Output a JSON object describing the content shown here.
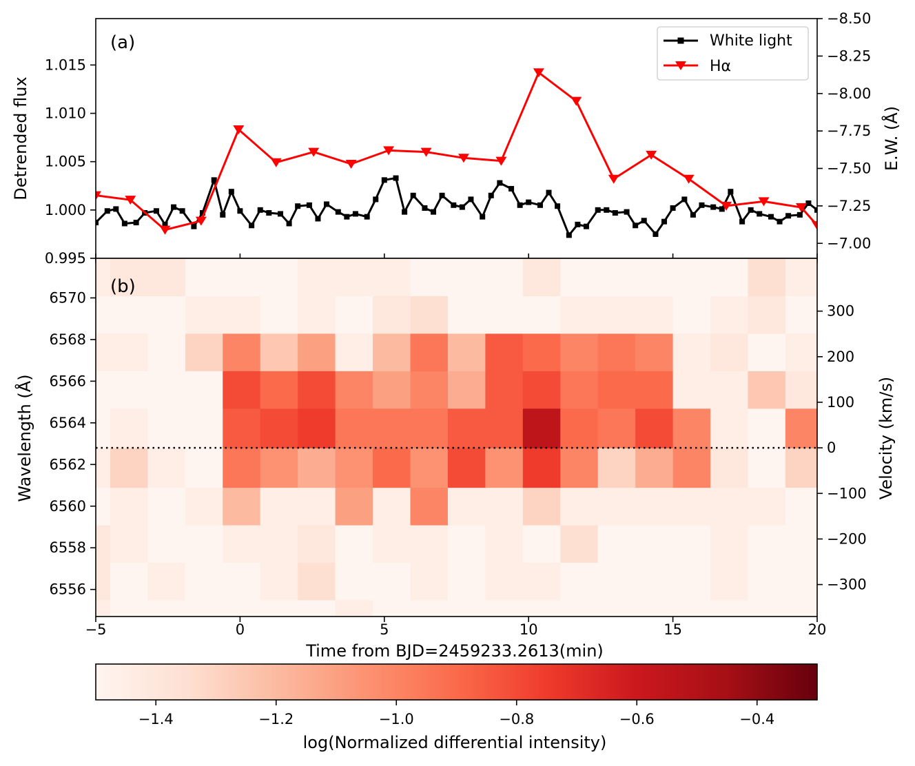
{
  "chart_data": [
    {
      "panel_label": "(a)",
      "type": "line",
      "xlim": [
        -5,
        20
      ],
      "ylim_left": [
        0.995,
        1.0198
      ],
      "ylim_right": [
        -6.9,
        -8.5
      ],
      "ylabel_left": "Detrended flux",
      "ylabel_right": "E.W. (Å)",
      "left_ticks": [
        {
          "v": 0.995,
          "label": "0.995"
        },
        {
          "v": 1.0,
          "label": "1.000"
        },
        {
          "v": 1.005,
          "label": "1.005"
        },
        {
          "v": 1.01,
          "label": "1.010"
        },
        {
          "v": 1.015,
          "label": "1.015"
        }
      ],
      "right_ticks": [
        {
          "v": -7.0,
          "label": "−7.00"
        },
        {
          "v": -7.25,
          "label": "−7.25"
        },
        {
          "v": -7.5,
          "label": "−7.50"
        },
        {
          "v": -7.75,
          "label": "−7.75"
        },
        {
          "v": -8.0,
          "label": "−8.00"
        },
        {
          "v": -8.25,
          "label": "−8.25"
        },
        {
          "v": -8.5,
          "label": "−8.50"
        }
      ],
      "legend": {
        "position": "top-right",
        "white_label": "White light",
        "ha_label": "Hα"
      },
      "series": [
        {
          "name": "White light",
          "axis": "left",
          "color": "#000000",
          "marker": "square",
          "x": [
            -5.0,
            -4.6,
            -4.3,
            -4.0,
            -3.6,
            -3.3,
            -2.9,
            -2.6,
            -2.3,
            -2.0,
            -1.6,
            -1.3,
            -0.9,
            -0.6,
            -0.3,
            0.0,
            0.4,
            0.7,
            1.0,
            1.4,
            1.7,
            2.0,
            2.4,
            2.7,
            3.0,
            3.4,
            3.7,
            4.0,
            4.4,
            4.7,
            5.0,
            5.4,
            5.7,
            6.0,
            6.4,
            6.7,
            7.0,
            7.4,
            7.7,
            8.0,
            8.4,
            8.7,
            9.0,
            9.4,
            9.7,
            10.0,
            10.4,
            10.7,
            11.0,
            11.4,
            11.7,
            12.0,
            12.4,
            12.7,
            13.0,
            13.4,
            13.7,
            14.0,
            14.4,
            14.7,
            15.0,
            15.4,
            15.7,
            16.0,
            16.4,
            16.7,
            17.0,
            17.4,
            17.7,
            18.0,
            18.4,
            18.7,
            19.0,
            19.4,
            19.7,
            20.0
          ],
          "y": [
            0.9987,
            0.9999,
            1.0001,
            0.9986,
            0.9987,
            0.9997,
            0.9999,
            0.9985,
            1.0003,
            0.9999,
            0.9983,
            0.9997,
            1.0031,
            0.9995,
            1.0019,
            0.9999,
            0.9984,
            1.0,
            0.9997,
            0.9996,
            0.9986,
            1.0004,
            1.0005,
            0.9991,
            1.0006,
            0.9998,
            0.9993,
            0.9996,
            0.9993,
            1.0011,
            1.0031,
            1.0033,
            0.9998,
            1.0015,
            1.0002,
            0.9998,
            1.0015,
            1.0005,
            1.0003,
            1.0011,
            0.9993,
            1.0015,
            1.0028,
            1.0022,
            1.0005,
            1.0008,
            1.0005,
            1.0018,
            1.0004,
            0.9974,
            0.9985,
            0.9983,
            1.0,
            1.0,
            0.9997,
            0.9998,
            0.9984,
            0.9989,
            0.9975,
            0.9988,
            1.0002,
            1.0011,
            0.9995,
            1.0005,
            1.0003,
            1.0001,
            1.0019,
            0.9988,
            1.0,
            0.9996,
            0.9993,
            0.9988,
            0.9994,
            0.9995,
            1.0007,
            1.0
          ]
        },
        {
          "name": "Hα",
          "axis": "right",
          "color": "#ff0000",
          "marker": "triangle-down",
          "x": [
            -5.0,
            -3.8,
            -2.6,
            -1.35,
            -0.05,
            1.25,
            2.55,
            3.85,
            5.15,
            6.45,
            7.75,
            9.05,
            10.35,
            11.65,
            12.95,
            14.25,
            15.55,
            16.85,
            18.15,
            19.45,
            20.0
          ],
          "y": [
            -7.32,
            -7.29,
            -7.09,
            -7.15,
            -7.76,
            -7.54,
            -7.61,
            -7.53,
            -7.62,
            -7.61,
            -7.57,
            -7.55,
            -8.14,
            -7.95,
            -7.43,
            -7.59,
            -7.43,
            -7.25,
            -7.28,
            -7.24,
            -7.12
          ]
        }
      ]
    },
    {
      "panel_label": "(b)",
      "type": "heatmap",
      "xlim": [
        -5,
        20
      ],
      "ylim": [
        6554.7,
        6571.9
      ],
      "xlabel": "Time from BJD=2459233.2613(min)",
      "ylabel_left": "Wavelength (Å)",
      "ylabel_right": "Velocity (km/s)",
      "x_ticks": [
        {
          "v": -5,
          "label": "−5"
        },
        {
          "v": 0,
          "label": "0"
        },
        {
          "v": 5,
          "label": "5"
        },
        {
          "v": 10,
          "label": "10"
        },
        {
          "v": 15,
          "label": "15"
        },
        {
          "v": 20,
          "label": "20"
        }
      ],
      "y_ticks": [
        {
          "v": 6556,
          "label": "6556"
        },
        {
          "v": 6558,
          "label": "6558"
        },
        {
          "v": 6560,
          "label": "6560"
        },
        {
          "v": 6562,
          "label": "6562"
        },
        {
          "v": 6564,
          "label": "6564"
        },
        {
          "v": 6566,
          "label": "6566"
        },
        {
          "v": 6568,
          "label": "6568"
        },
        {
          "v": 6570,
          "label": "6570"
        }
      ],
      "velocity_ticks": [
        {
          "v": -300,
          "label": "−300"
        },
        {
          "v": -200,
          "label": "−200"
        },
        {
          "v": -100,
          "label": "−100"
        },
        {
          "v": 0,
          "label": "0"
        },
        {
          "v": 100,
          "label": "100"
        },
        {
          "v": 200,
          "label": "200"
        },
        {
          "v": 300,
          "label": "300"
        }
      ],
      "rest_wavelength": 6562.8,
      "velocity_per_angstrom": 45.7,
      "reference_line": {
        "wavelength": 6562.8,
        "style": "dotted"
      },
      "column_edges": [
        -5,
        -4.5,
        -3.2,
        -1.9,
        -0.6,
        0.7,
        2.0,
        3.3,
        4.6,
        5.9,
        7.2,
        8.5,
        9.8,
        11.1,
        12.4,
        13.7,
        15.0,
        16.3,
        17.6,
        18.9,
        20
      ],
      "row_edges": [
        6554.7,
        6555.5,
        6557.3,
        6559.1,
        6560.9,
        6562.8,
        6564.7,
        6566.5,
        6568.3,
        6570.1,
        6571.9
      ],
      "values": [
        [
          -1.45,
          -1.5,
          -1.5,
          -1.5,
          -1.5,
          -1.5,
          -1.5,
          -1.45,
          -1.5,
          -1.5,
          -1.5,
          -1.5,
          -1.5,
          -1.5,
          -1.5,
          -1.5,
          -1.5,
          -1.5,
          -1.5,
          -1.5
        ],
        [
          -1.4,
          -1.5,
          -1.45,
          -1.5,
          -1.5,
          -1.45,
          -1.35,
          -1.5,
          -1.5,
          -1.45,
          -1.5,
          -1.45,
          -1.45,
          -1.5,
          -1.5,
          -1.5,
          -1.5,
          -1.45,
          -1.5,
          -1.5
        ],
        [
          -1.4,
          -1.45,
          -1.5,
          -1.5,
          -1.45,
          -1.45,
          -1.4,
          -1.5,
          -1.45,
          -1.45,
          -1.5,
          -1.45,
          -1.5,
          -1.35,
          -1.5,
          -1.5,
          -1.5,
          -1.45,
          -1.5,
          -1.5
        ],
        [
          -1.5,
          -1.45,
          -1.5,
          -1.45,
          -1.2,
          -1.45,
          -1.45,
          -1.1,
          -1.45,
          -1.0,
          -1.45,
          -1.45,
          -1.3,
          -1.45,
          -1.45,
          -1.45,
          -1.45,
          -1.45,
          -1.45,
          -1.5
        ],
        [
          -1.45,
          -1.3,
          -1.45,
          -1.5,
          -0.95,
          -1.05,
          -1.15,
          -1.05,
          -0.9,
          -1.05,
          -0.8,
          -1.05,
          -0.75,
          -1.0,
          -1.3,
          -1.15,
          -1.0,
          -1.4,
          -1.5,
          -1.3
        ],
        [
          -1.5,
          -1.45,
          -1.5,
          -1.5,
          -0.85,
          -0.8,
          -0.75,
          -0.95,
          -0.95,
          -0.95,
          -0.85,
          -0.85,
          -0.55,
          -0.9,
          -0.95,
          -0.8,
          -1.0,
          -1.45,
          -1.5,
          -1.0
        ],
        [
          -1.5,
          -1.5,
          -1.5,
          -1.5,
          -0.8,
          -0.9,
          -0.8,
          -1.0,
          -1.1,
          -1.0,
          -1.15,
          -0.85,
          -0.8,
          -0.95,
          -0.9,
          -0.9,
          -1.45,
          -1.45,
          -1.25,
          -1.4
        ],
        [
          -1.45,
          -1.45,
          -1.5,
          -1.3,
          -1.0,
          -1.25,
          -1.1,
          -1.45,
          -1.2,
          -0.95,
          -1.2,
          -0.85,
          -0.9,
          -1.0,
          -0.95,
          -1.0,
          -1.45,
          -1.4,
          -1.5,
          -1.45
        ],
        [
          -1.5,
          -1.5,
          -1.5,
          -1.45,
          -1.45,
          -1.5,
          -1.45,
          -1.5,
          -1.4,
          -1.35,
          -1.5,
          -1.5,
          -1.5,
          -1.45,
          -1.45,
          -1.45,
          -1.5,
          -1.45,
          -1.4,
          -1.5
        ],
        [
          -1.45,
          -1.4,
          -1.4,
          -1.5,
          -1.5,
          -1.5,
          -1.45,
          -1.45,
          -1.45,
          -1.5,
          -1.5,
          -1.5,
          -1.4,
          -1.5,
          -1.5,
          -1.5,
          -1.5,
          -1.5,
          -1.35,
          -1.45
        ]
      ]
    },
    {
      "type": "colorbar",
      "label": "log(Normalized differential intensity)",
      "range": [
        -1.5,
        -0.3
      ],
      "colors": [
        "#fff5f0",
        "#fee0d2",
        "#fcbba1",
        "#fc9272",
        "#fb6a4a",
        "#ef3b2c",
        "#cb181d",
        "#a50f15",
        "#67000d"
      ],
      "ticks": [
        {
          "v": -1.4,
          "label": "−1.4"
        },
        {
          "v": -1.2,
          "label": "−1.2"
        },
        {
          "v": -1.0,
          "label": "−1.0"
        },
        {
          "v": -0.8,
          "label": "−0.8"
        },
        {
          "v": -0.6,
          "label": "−0.6"
        },
        {
          "v": -0.4,
          "label": "−0.4"
        }
      ]
    }
  ]
}
